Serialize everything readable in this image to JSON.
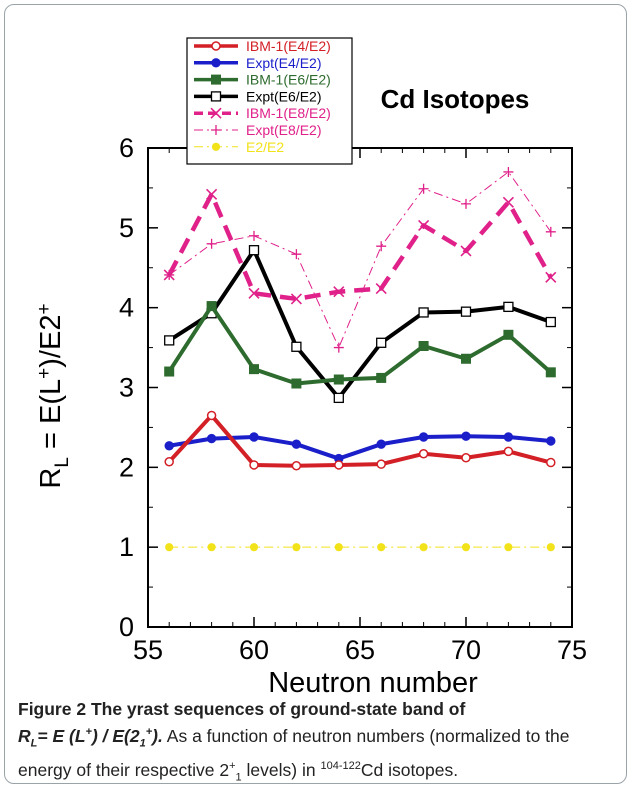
{
  "chart_data": {
    "type": "line",
    "title": "Cd Isotopes",
    "ylabel_parts": [
      "R",
      "L",
      " = E(L",
      "+",
      ")/E2",
      "+"
    ],
    "xlabel": "Neutron number",
    "xlim": [
      55,
      75
    ],
    "ylim": [
      0,
      6
    ],
    "x_ticks": [
      "55",
      "60",
      "65",
      "70",
      "75"
    ],
    "y_ticks": [
      "0",
      "1",
      "2",
      "3",
      "4",
      "5",
      "6"
    ],
    "legend_position": "top-left",
    "grid": false,
    "series": [
      {
        "name": "IBM-1(E4/E2)",
        "color": "#d31f26",
        "marker": "open-circle",
        "style": "solid-thick",
        "x": [
          56,
          58,
          60,
          62,
          64,
          66,
          68,
          70,
          72,
          74
        ],
        "y": [
          2.07,
          2.65,
          2.03,
          2.02,
          2.03,
          2.04,
          2.17,
          2.12,
          2.2,
          2.06
        ]
      },
      {
        "name": "Expt(E4/E2)",
        "color": "#1b1fc9",
        "marker": "filled-circle",
        "style": "solid-thick",
        "x": [
          56,
          58,
          60,
          62,
          64,
          66,
          68,
          70,
          72,
          74
        ],
        "y": [
          2.27,
          2.36,
          2.38,
          2.29,
          2.11,
          2.29,
          2.38,
          2.39,
          2.38,
          2.33
        ]
      },
      {
        "name": "IBM-1(E6/E2)",
        "color": "#2e6b2e",
        "marker": "filled-square",
        "style": "solid-thick",
        "x": [
          56,
          58,
          60,
          62,
          64,
          66,
          68,
          70,
          72,
          74
        ],
        "y": [
          3.2,
          4.02,
          3.23,
          3.05,
          3.1,
          3.12,
          3.52,
          3.36,
          3.66,
          3.19
        ]
      },
      {
        "name": "Expt(E6/E2)",
        "color": "#000000",
        "marker": "open-square",
        "style": "solid-thick",
        "x": [
          56,
          58,
          60,
          62,
          64,
          66,
          68,
          70,
          72,
          74
        ],
        "y": [
          3.59,
          3.93,
          4.72,
          3.51,
          2.87,
          3.56,
          3.94,
          3.95,
          4.01,
          3.82
        ]
      },
      {
        "name": "IBM-1(E8/E2)",
        "color": "#e0218a",
        "marker": "x",
        "style": "dashed-thick",
        "x": [
          56,
          58,
          60,
          62,
          64,
          66,
          68,
          70,
          72,
          74
        ],
        "y": [
          4.41,
          5.42,
          4.18,
          4.11,
          4.2,
          4.24,
          5.03,
          4.71,
          5.32,
          4.38
        ]
      },
      {
        "name": "Expt(E8/E2)",
        "color": "#e0218a",
        "marker": "plus",
        "style": "dashdot-thin",
        "x": [
          56,
          58,
          60,
          62,
          64,
          66,
          68,
          70,
          72,
          74
        ],
        "y": [
          4.41,
          4.8,
          4.9,
          4.67,
          3.5,
          4.77,
          5.49,
          5.3,
          5.7,
          4.95
        ]
      },
      {
        "name": "E2/E2",
        "color": "#f2e21a",
        "marker": "filled-circle-small",
        "style": "dashdot-thin",
        "x": [
          56,
          58,
          60,
          62,
          64,
          66,
          68,
          70,
          72,
          74
        ],
        "y": [
          1,
          1,
          1,
          1,
          1,
          1,
          1,
          1,
          1,
          1
        ]
      }
    ]
  },
  "caption": {
    "figure_label": "Figure 2",
    "title_text": "The yrast sequences of ground-state band of",
    "formula_r": "R",
    "formula_r_sub": "L",
    "formula_mid": "= E (L",
    "formula_plus1": "+",
    "formula_mid2": ") / E(2",
    "formula_sub1": "1",
    "formula_plus2": "+",
    "formula_end": ").",
    "body_1": "As a function of neutron numbers (normalized to the energy of their respective 2",
    "body_sup": "+",
    "body_sub": "1",
    "body_2": "levels) in",
    "isotope_range": "104-122",
    "isotope_symbol": "Cd isotopes."
  }
}
